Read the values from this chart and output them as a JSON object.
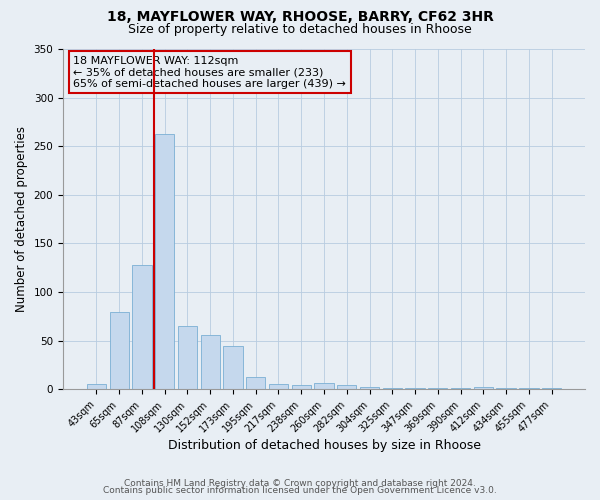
{
  "title": "18, MAYFLOWER WAY, RHOOSE, BARRY, CF62 3HR",
  "subtitle": "Size of property relative to detached houses in Rhoose",
  "xlabel": "Distribution of detached houses by size in Rhoose",
  "ylabel": "Number of detached properties",
  "bar_labels": [
    "43sqm",
    "65sqm",
    "87sqm",
    "108sqm",
    "130sqm",
    "152sqm",
    "173sqm",
    "195sqm",
    "217sqm",
    "238sqm",
    "260sqm",
    "282sqm",
    "304sqm",
    "325sqm",
    "347sqm",
    "369sqm",
    "390sqm",
    "412sqm",
    "434sqm",
    "455sqm",
    "477sqm"
  ],
  "bar_values": [
    5,
    80,
    128,
    263,
    65,
    56,
    45,
    13,
    5,
    4,
    6,
    4,
    2,
    1,
    1,
    1,
    1,
    2,
    1,
    1,
    1
  ],
  "bar_color": "#c5d8ed",
  "bar_edge_color": "#7bafd4",
  "vline_x": 2.55,
  "vline_color": "#cc0000",
  "ylim": [
    0,
    350
  ],
  "annotation_title": "18 MAYFLOWER WAY: 112sqm",
  "annotation_line1": "← 35% of detached houses are smaller (233)",
  "annotation_line2": "65% of semi-detached houses are larger (439) →",
  "annotation_box_color": "#cc0000",
  "footer_line1": "Contains HM Land Registry data © Crown copyright and database right 2024.",
  "footer_line2": "Contains public sector information licensed under the Open Government Licence v3.0.",
  "background_color": "#e8eef4",
  "plot_bg_color": "#e8eef4",
  "title_fontsize": 10,
  "subtitle_fontsize": 9,
  "tick_fontsize": 7,
  "ylabel_fontsize": 8.5,
  "xlabel_fontsize": 9
}
